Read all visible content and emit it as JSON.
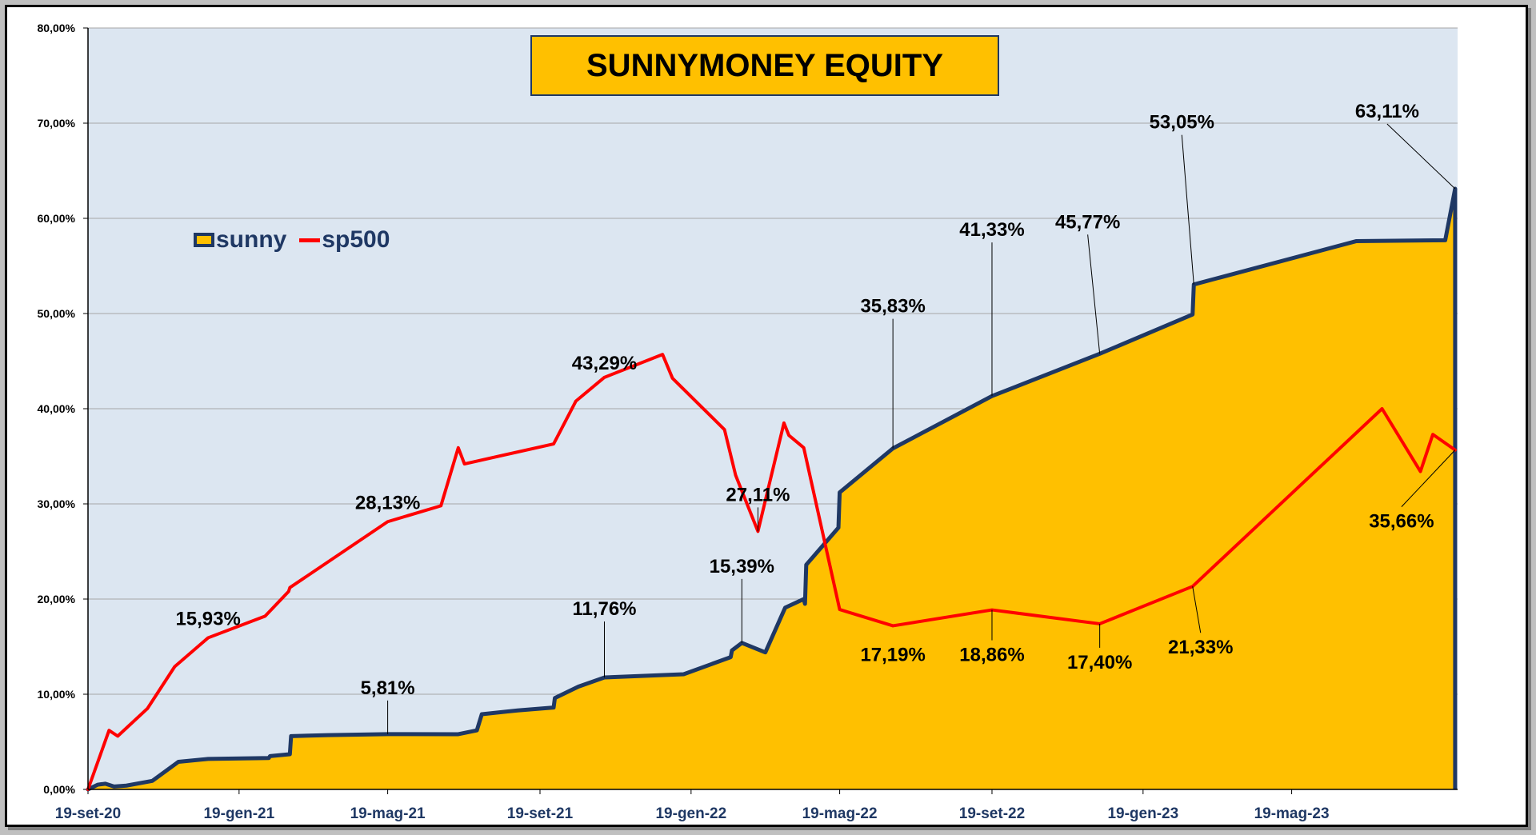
{
  "chart_data": {
    "type": "area",
    "title": "SUNNYMONEY EQUITY",
    "xlabel": "",
    "ylabel": "",
    "ylim": [
      0,
      80
    ],
    "y_tick_labels": [
      "0,00%",
      "10,00%",
      "20,00%",
      "30,00%",
      "40,00%",
      "50,00%",
      "60,00%",
      "70,00%",
      "80,00%"
    ],
    "x_tick_labels": [
      "19-set-20",
      "19-gen-21",
      "19-mag-21",
      "19-set-21",
      "19-gen-22",
      "19-mag-22",
      "19-set-22",
      "19-gen-23",
      "19-mag-23"
    ],
    "x_tick_dates": [
      "2020-09-19",
      "2021-01-19",
      "2021-05-19",
      "2021-09-19",
      "2022-01-19",
      "2022-05-19",
      "2022-09-19",
      "2023-01-19",
      "2023-05-19"
    ],
    "x_range": [
      "2020-09-19",
      "2023-09-30"
    ],
    "grid": true,
    "legend_position": "upper-left",
    "series": [
      {
        "name": "sunny",
        "kind": "area",
        "fill_color": "#ffc000",
        "line_color": "#1f3864",
        "points": [
          [
            "2020-09-19",
            0.0
          ],
          [
            "2020-09-27",
            0.5
          ],
          [
            "2020-10-03",
            0.6
          ],
          [
            "2020-10-10",
            0.3
          ],
          [
            "2020-10-20",
            0.4
          ],
          [
            "2020-11-10",
            0.9
          ],
          [
            "2020-12-01",
            2.9
          ],
          [
            "2020-12-25",
            3.2
          ],
          [
            "2021-02-12",
            3.3
          ],
          [
            "2021-02-13",
            3.5
          ],
          [
            "2021-03-01",
            3.7
          ],
          [
            "2021-03-02",
            5.6
          ],
          [
            "2021-04-01",
            5.7
          ],
          [
            "2021-05-19",
            5.81
          ],
          [
            "2021-07-15",
            5.8
          ],
          [
            "2021-07-30",
            6.2
          ],
          [
            "2021-08-03",
            7.9
          ],
          [
            "2021-09-01",
            8.3
          ],
          [
            "2021-09-30",
            8.6
          ],
          [
            "2021-10-01",
            9.6
          ],
          [
            "2021-10-20",
            10.8
          ],
          [
            "2021-11-10",
            11.76
          ],
          [
            "2022-01-13",
            12.1
          ],
          [
            "2022-02-20",
            13.9
          ],
          [
            "2022-02-21",
            14.6
          ],
          [
            "2022-03-01",
            15.39
          ],
          [
            "2022-03-20",
            14.4
          ],
          [
            "2022-04-05",
            19.1
          ],
          [
            "2022-04-20",
            20.0
          ],
          [
            "2022-04-21",
            19.5
          ],
          [
            "2022-04-22",
            23.6
          ],
          [
            "2022-05-18",
            27.5
          ],
          [
            "2022-05-19",
            31.2
          ],
          [
            "2022-07-01",
            35.83
          ],
          [
            "2022-09-19",
            41.33
          ],
          [
            "2022-12-15",
            45.77
          ],
          [
            "2023-02-28",
            49.9
          ],
          [
            "2023-03-01",
            53.05
          ],
          [
            "2023-07-10",
            57.6
          ],
          [
            "2023-09-20",
            57.7
          ],
          [
            "2023-09-28",
            63.11
          ]
        ]
      },
      {
        "name": "sp500",
        "kind": "line",
        "line_color": "#ff0000",
        "points": [
          [
            "2020-09-19",
            0.0
          ],
          [
            "2020-10-06",
            6.2
          ],
          [
            "2020-10-13",
            5.6
          ],
          [
            "2020-11-06",
            8.5
          ],
          [
            "2020-11-28",
            12.9
          ],
          [
            "2020-12-25",
            15.93
          ],
          [
            "2021-02-09",
            18.2
          ],
          [
            "2021-02-28",
            20.8
          ],
          [
            "2021-03-01",
            21.2
          ],
          [
            "2021-05-19",
            28.13
          ],
          [
            "2021-07-01",
            29.8
          ],
          [
            "2021-07-15",
            35.9
          ],
          [
            "2021-07-20",
            34.2
          ],
          [
            "2021-09-30",
            36.3
          ],
          [
            "2021-10-18",
            40.8
          ],
          [
            "2021-11-10",
            43.29
          ],
          [
            "2021-12-27",
            45.7
          ],
          [
            "2022-01-04",
            43.2
          ],
          [
            "2022-02-15",
            37.8
          ],
          [
            "2022-02-24",
            33.0
          ],
          [
            "2022-03-14",
            27.11
          ],
          [
            "2022-04-04",
            38.5
          ],
          [
            "2022-04-08",
            37.2
          ],
          [
            "2022-04-20",
            35.9
          ],
          [
            "2022-05-19",
            18.9
          ],
          [
            "2022-07-01",
            17.19
          ],
          [
            "2022-09-19",
            18.86
          ],
          [
            "2022-12-15",
            17.4
          ],
          [
            "2023-02-28",
            21.33
          ],
          [
            "2023-07-31",
            40.0
          ],
          [
            "2023-08-31",
            33.4
          ],
          [
            "2023-09-10",
            37.3
          ],
          [
            "2023-09-28",
            35.66
          ]
        ]
      }
    ],
    "data_labels": [
      {
        "series": "sp500",
        "text": "15,93%",
        "date": "2020-12-25",
        "value": 15.93
      },
      {
        "series": "sp500",
        "text": "28,13%",
        "date": "2021-05-19",
        "value": 28.13
      },
      {
        "series": "sp500",
        "text": "43,29%",
        "date": "2021-11-10",
        "value": 43.29
      },
      {
        "series": "sp500",
        "text": "27,11%",
        "date": "2022-03-14",
        "value": 27.11
      },
      {
        "series": "sp500",
        "text": "17,19%",
        "date": "2022-07-01",
        "value": 17.19
      },
      {
        "series": "sp500",
        "text": "18,86%",
        "date": "2022-09-19",
        "value": 18.86
      },
      {
        "series": "sp500",
        "text": "17,40%",
        "date": "2022-12-15",
        "value": 17.4
      },
      {
        "series": "sp500",
        "text": "21,33%",
        "date": "2023-02-28",
        "value": 21.33
      },
      {
        "series": "sp500",
        "text": "35,66%",
        "date": "2023-09-28",
        "value": 35.66
      },
      {
        "series": "sunny",
        "text": "5,81%",
        "date": "2021-05-19",
        "value": 5.81
      },
      {
        "series": "sunny",
        "text": "11,76%",
        "date": "2021-11-10",
        "value": 11.76
      },
      {
        "series": "sunny",
        "text": "15,39%",
        "date": "2022-03-01",
        "value": 15.39
      },
      {
        "series": "sunny",
        "text": "35,83%",
        "date": "2022-07-01",
        "value": 35.83
      },
      {
        "series": "sunny",
        "text": "41,33%",
        "date": "2022-09-19",
        "value": 41.33
      },
      {
        "series": "sunny",
        "text": "45,77%",
        "date": "2022-12-15",
        "value": 45.77
      },
      {
        "series": "sunny",
        "text": "53,05%",
        "date": "2023-03-01",
        "value": 53.05
      },
      {
        "series": "sunny",
        "text": "63,11%",
        "date": "2023-09-28",
        "value": 63.11
      }
    ]
  },
  "legend": {
    "sunny_label": "sunny",
    "sp500_label": "sp500"
  },
  "colors": {
    "plot_background": "#dce6f1",
    "gridline": "#a6a6a6",
    "sunny_fill": "#ffc000",
    "sunny_line": "#1f3864",
    "sp500_line": "#ff0000",
    "title_background": "#ffc000"
  }
}
